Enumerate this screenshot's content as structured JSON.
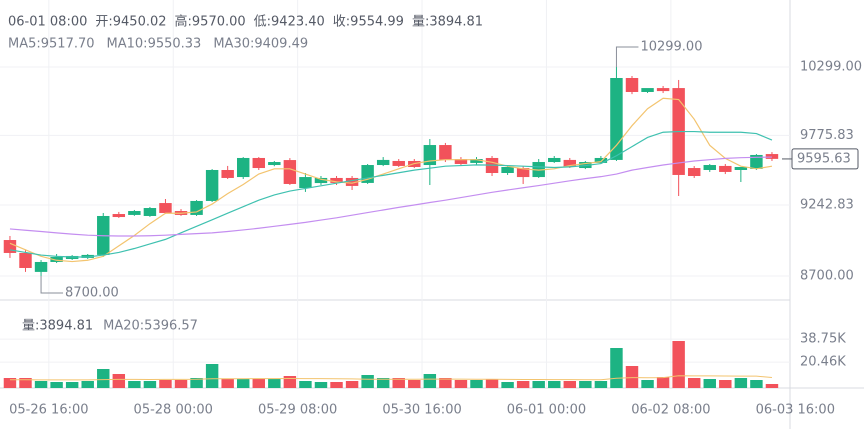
{
  "chart_data": [
    {
      "type": "candlestick",
      "header": [
        "06-01 08:00",
        "开:9450.02",
        "高:9570.00",
        "低:9423.40",
        "收:9554.99",
        "量:3894.81"
      ],
      "up_color": "#1db383",
      "down_color": "#f2525b",
      "open": [
        8975,
        8876,
        8731,
        8807,
        8830,
        8838,
        8861,
        9174,
        9167,
        9159,
        9258,
        9197,
        9167,
        9274,
        9511,
        9457,
        9603,
        9549,
        9587,
        9373,
        9411,
        9450,
        9450,
        9412,
        9549,
        9580,
        9580,
        9549,
        9702,
        9595,
        9565,
        9603,
        9488,
        9526,
        9457,
        9572,
        9588,
        9526,
        9565,
        9588,
        10215,
        10108,
        10138,
        10138,
        9526,
        9511,
        9542,
        9511,
        9519,
        9633
      ],
      "high": [
        9006,
        8899,
        8822,
        8868,
        8860,
        8868,
        9182,
        9190,
        9205,
        9228,
        9289,
        9212,
        9281,
        9518,
        9542,
        9610,
        9610,
        9580,
        9602,
        9488,
        9465,
        9465,
        9465,
        9557,
        9610,
        9595,
        9595,
        9748,
        9718,
        9610,
        9610,
        9618,
        9549,
        9541,
        9595,
        9618,
        9603,
        9580,
        9618,
        10299,
        10230,
        10130,
        10154,
        10200,
        9541,
        9557,
        9557,
        9534,
        9633,
        9648
      ],
      "low": [
        8838,
        8731,
        8700,
        8799,
        8822,
        8830,
        8845,
        9144,
        9160,
        9152,
        9174,
        9160,
        9159,
        9266,
        9442,
        9442,
        9511,
        9540,
        9396,
        9343,
        9396,
        9396,
        9358,
        9404,
        9541,
        9534,
        9526,
        9396,
        9572,
        9549,
        9549,
        9465,
        9473,
        9404,
        9450,
        9565,
        9526,
        9518,
        9557,
        9580,
        10092,
        10100,
        10100,
        9312,
        9450,
        9496,
        9480,
        9419,
        9511,
        9580
      ],
      "close": [
        8876,
        8761,
        8807,
        8845,
        8853,
        8861,
        9159,
        9151,
        9197,
        9220,
        9182,
        9167,
        9274,
        9511,
        9450,
        9603,
        9526,
        9572,
        9404,
        9457,
        9450,
        9412,
        9389,
        9549,
        9588,
        9542,
        9534,
        9702,
        9588,
        9557,
        9595,
        9488,
        9534,
        9457,
        9572,
        9603,
        9534,
        9572,
        9603,
        10215,
        10108,
        10138,
        10115,
        9473,
        9465,
        9549,
        9496,
        9534,
        9626,
        9596
      ],
      "lines": [
        {
          "name": "MA5:9517.70",
          "color": "#f3c46f",
          "values": [
            8950,
            8900,
            8850,
            8820,
            8810,
            8820,
            8850,
            8930,
            9010,
            9100,
            9180,
            9180,
            9190,
            9250,
            9330,
            9400,
            9480,
            9520,
            9520,
            9480,
            9440,
            9420,
            9410,
            9440,
            9480,
            9520,
            9560,
            9580,
            9590,
            9590,
            9590,
            9570,
            9540,
            9520,
            9510,
            9520,
            9545,
            9560,
            9575,
            9700,
            9850,
            9980,
            10060,
            10050,
            9900,
            9700,
            9600,
            9540,
            9520,
            9540
          ]
        },
        {
          "name": "MA10:9550.33",
          "color": "#3fc1b0",
          "values": [
            8900,
            8880,
            8860,
            8850,
            8845,
            8845,
            8860,
            8880,
            8910,
            8945,
            8980,
            9030,
            9080,
            9130,
            9180,
            9230,
            9280,
            9320,
            9350,
            9370,
            9390,
            9410,
            9430,
            9450,
            9470,
            9490,
            9510,
            9525,
            9540,
            9545,
            9550,
            9548,
            9545,
            9540,
            9535,
            9530,
            9535,
            9545,
            9560,
            9620,
            9690,
            9760,
            9800,
            9805,
            9805,
            9800,
            9800,
            9800,
            9790,
            9740
          ]
        },
        {
          "name": "MA30:9409.49",
          "color": "#c48ef0",
          "values": [
            9060,
            9050,
            9040,
            9030,
            9020,
            9012,
            9008,
            9006,
            9006,
            9008,
            9012,
            9018,
            9024,
            9030,
            9040,
            9052,
            9065,
            9080,
            9095,
            9110,
            9128,
            9145,
            9165,
            9185,
            9205,
            9225,
            9243,
            9262,
            9280,
            9300,
            9320,
            9340,
            9358,
            9375,
            9392,
            9410,
            9428,
            9445,
            9460,
            9480,
            9510,
            9530,
            9549,
            9565,
            9580,
            9590,
            9600,
            9605,
            9608,
            9610
          ]
        }
      ],
      "ylim": [
        8516,
        10812
      ],
      "yticks": [
        {
          "value": 10299,
          "label": "10299.00"
        },
        {
          "value": 9775.83,
          "label": "9775.83"
        },
        {
          "value": 9242.83,
          "label": "9242.83"
        },
        {
          "value": 8700,
          "label": "8700.00"
        }
      ],
      "last_price": 9595.63,
      "annotations": [
        {
          "value": 10299,
          "label": "10299.00"
        },
        {
          "value": 8700,
          "label": "8700.00"
        }
      ],
      "grid": true
    },
    {
      "type": "bar",
      "title": "量:3894.81",
      "values": [
        7920,
        7920,
        5544,
        4752,
        4752,
        5544,
        15048,
        11088,
        5544,
        5544,
        6336,
        6336,
        7920,
        19008,
        7128,
        7128,
        7128,
        7128,
        9504,
        5544,
        4752,
        4752,
        5544,
        10296,
        7920,
        7920,
        6336,
        11088,
        7920,
        6336,
        6336,
        7128,
        4752,
        5544,
        5544,
        5544,
        5544,
        5544,
        5544,
        31680,
        17424,
        6336,
        8712,
        37224,
        7920,
        7128,
        6336,
        7920,
        6336,
        3168
      ],
      "line": {
        "name": "MA20:5396.57",
        "color": "#f3c46f",
        "values": [
          6500,
          6500,
          6480,
          6450,
          6420,
          6400,
          6600,
          6800,
          6800,
          6750,
          6800,
          6850,
          6900,
          7300,
          7300,
          7350,
          7400,
          7400,
          7500,
          7450,
          7400,
          7300,
          7200,
          6900,
          6900,
          6950,
          6950,
          7000,
          7050,
          7000,
          6950,
          6900,
          6800,
          6750,
          6700,
          6650,
          6600,
          6550,
          6500,
          7700,
          8200,
          8150,
          8200,
          9700,
          9650,
          9600,
          9500,
          9450,
          9400,
          8300
        ]
      },
      "ylim": [
        0,
        60200
      ],
      "yticks": [
        {
          "value": 38750,
          "label": "38.75K"
        },
        {
          "value": 20460,
          "label": "20.46K"
        }
      ],
      "xlim": [
        -0.64,
        50.16
      ],
      "xticks": [
        {
          "value": 2.5,
          "label": "05-26 16:00"
        },
        {
          "value": 10.5,
          "label": "05-28 00:00"
        },
        {
          "value": 18.5,
          "label": "05-29 08:00"
        },
        {
          "value": 26.5,
          "label": "05-30 16:00"
        },
        {
          "value": 34.5,
          "label": "06-01 00:00"
        },
        {
          "value": 42.5,
          "label": "06-02 08:00"
        },
        {
          "value": 50.5,
          "label": "06-03 16:00"
        }
      ]
    }
  ]
}
